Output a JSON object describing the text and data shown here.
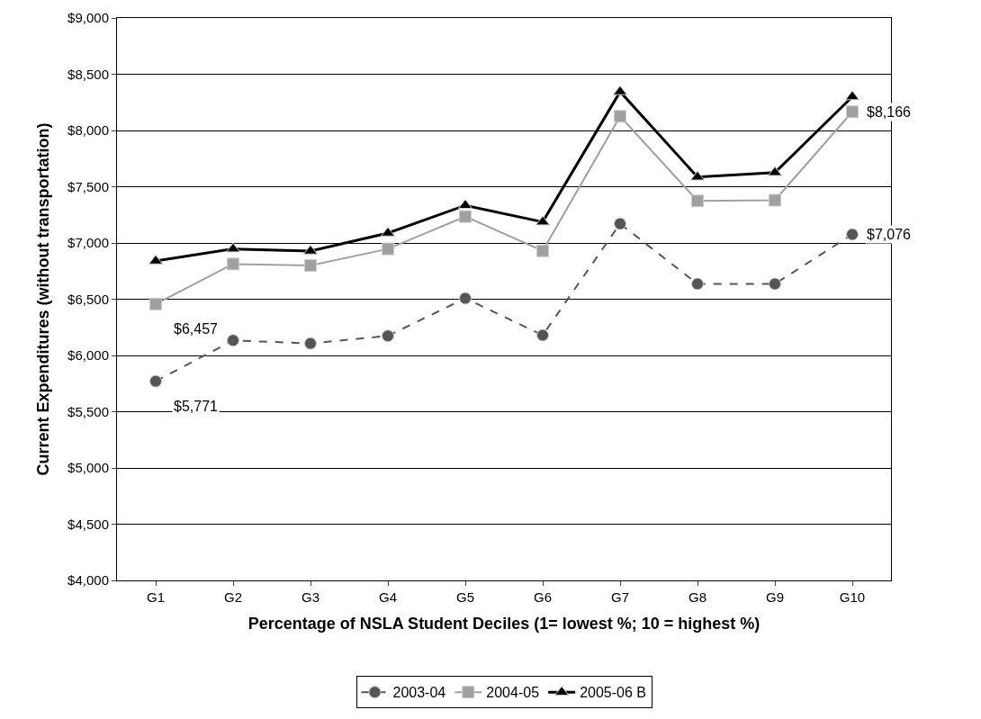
{
  "chart_data": {
    "type": "line",
    "xlabel": "Percentage of NSLA Student Deciles (1= lowest %; 10 = highest %)",
    "ylabel": "Current Expenditures (without transportation)",
    "categories": [
      "G1",
      "G2",
      "G3",
      "G4",
      "G5",
      "G6",
      "G7",
      "G8",
      "G9",
      "G10"
    ],
    "series": [
      {
        "name": "2003-04",
        "color": "#555555",
        "marker": "circle",
        "line_style": "dashed",
        "values": [
          5771,
          6134,
          6107,
          6174,
          6508,
          6180,
          7171,
          6636,
          6636,
          7076
        ],
        "value_labels": [
          "$5,771",
          null,
          null,
          null,
          null,
          null,
          null,
          null,
          null,
          "$7,076"
        ]
      },
      {
        "name": "2004-05",
        "color": "#a0a0a0",
        "marker": "square",
        "line_style": "solid",
        "values": [
          6457,
          6813,
          6800,
          6947,
          7235,
          6930,
          8126,
          7374,
          7380,
          8166
        ],
        "value_labels": [
          "$6,457",
          null,
          null,
          null,
          null,
          null,
          null,
          null,
          null,
          "$8,166"
        ]
      },
      {
        "name": "2005-06 B",
        "color": "#000000",
        "marker": "triangle",
        "line_style": "solid",
        "values": [
          6840,
          6947,
          6928,
          7088,
          7334,
          7187,
          8345,
          7586,
          7626,
          8300
        ]
      }
    ],
    "ylim": [
      4000,
      9000
    ],
    "yticks": [
      {
        "value": 4000,
        "label": "$4,000"
      },
      {
        "value": 4500,
        "label": "$4,500"
      },
      {
        "value": 5000,
        "label": "$5,000"
      },
      {
        "value": 5500,
        "label": "$5,500"
      },
      {
        "value": 6000,
        "label": "$6,000"
      },
      {
        "value": 6500,
        "label": "$6,500"
      },
      {
        "value": 7000,
        "label": "$7,000"
      },
      {
        "value": 7500,
        "label": "$7,500"
      },
      {
        "value": 8000,
        "label": "$8,000"
      },
      {
        "value": 8500,
        "label": "$8,500"
      },
      {
        "value": 9000,
        "label": "$9,000"
      }
    ],
    "grid": "y",
    "legend": "bottom"
  }
}
